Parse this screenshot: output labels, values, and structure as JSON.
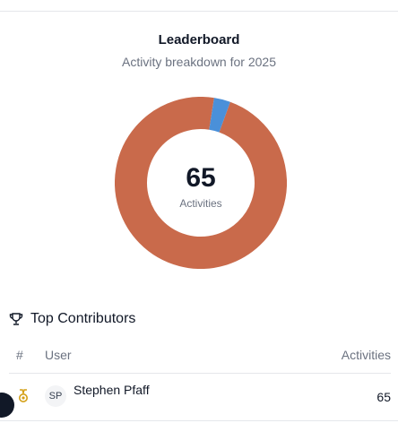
{
  "card": {
    "title": "Leaderboard",
    "subtitle": "Activity breakdown for 2025"
  },
  "donut": {
    "total": "65",
    "total_label": "Activities",
    "segments": [
      {
        "value": 63,
        "color": "#c96a4b"
      },
      {
        "value": 2,
        "color": "#4a90d9"
      }
    ]
  },
  "contributors": {
    "heading": "Top Contributors",
    "columns": {
      "rank": "#",
      "user": "User",
      "activities": "Activities"
    },
    "rows": [
      {
        "initials": "SP",
        "name": "Stephen Pfaff",
        "activities": "65"
      }
    ]
  }
}
